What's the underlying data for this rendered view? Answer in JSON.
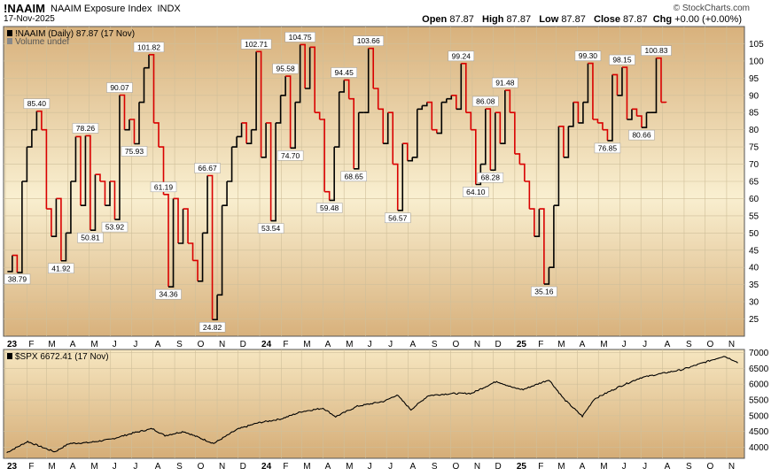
{
  "header": {
    "symbol": "!NAAIM",
    "name": "NAAIM Exposure Index",
    "exchange": "INDX",
    "date": "17-Nov-2025",
    "brand": "© StockCharts.com",
    "open_label": "Open",
    "open": "87.87",
    "high_label": "High",
    "high": "87.87",
    "low_label": "Low",
    "low": "87.87",
    "close_label": "Close",
    "close": "87.87",
    "chg_label": "Chg",
    "chg": "+0.00 (+0.00%)"
  },
  "colors": {
    "up": "#000000",
    "down": "#d90000",
    "bg_top": "#d8b17c",
    "bg_mid": "#f9efd0",
    "grid": "#cfbf9a"
  },
  "chart_data": [
    {
      "type": "line",
      "legend": "!NAAIM (Daily) 87.87 (17 Nov)",
      "sublegend": "Volume undef",
      "ylim": [
        20,
        110
      ],
      "yticks": [
        25,
        30,
        35,
        40,
        45,
        50,
        55,
        60,
        65,
        70,
        75,
        80,
        85,
        90,
        95,
        100,
        105
      ],
      "xticks": [
        "23",
        "F",
        "M",
        "A",
        "M",
        "J",
        "J",
        "A",
        "S",
        "O",
        "N",
        "D",
        "24",
        "F",
        "M",
        "A",
        "M",
        "J",
        "J",
        "A",
        "S",
        "O",
        "N",
        "D",
        "25",
        "F",
        "M",
        "A",
        "M",
        "J",
        "J",
        "A",
        "S",
        "O",
        "N"
      ],
      "x_start": "2023-01-01",
      "x_end": "2025-11-24",
      "series": [
        {
          "points": [
            [
              "2023-01-04",
              38.79
            ],
            [
              "2023-01-11",
              43.5
            ],
            [
              "2023-01-18",
              38.5
            ],
            [
              "2023-01-25",
              65.0
            ],
            [
              "2023-02-01",
              75.0
            ],
            [
              "2023-02-08",
              80.0
            ],
            [
              "2023-02-15",
              85.4
            ],
            [
              "2023-02-22",
              80.0
            ],
            [
              "2023-03-01",
              57.0
            ],
            [
              "2023-03-08",
              49.0
            ],
            [
              "2023-03-15",
              60.0
            ],
            [
              "2023-03-22",
              41.92
            ],
            [
              "2023-03-29",
              50.0
            ],
            [
              "2023-04-05",
              65.0
            ],
            [
              "2023-04-12",
              78.0
            ],
            [
              "2023-04-19",
              58.0
            ],
            [
              "2023-04-26",
              78.26
            ],
            [
              "2023-05-03",
              50.81
            ],
            [
              "2023-05-10",
              67.0
            ],
            [
              "2023-05-17",
              65.0
            ],
            [
              "2023-05-24",
              58.0
            ],
            [
              "2023-05-31",
              65.0
            ],
            [
              "2023-06-07",
              53.92
            ],
            [
              "2023-06-14",
              90.07
            ],
            [
              "2023-06-21",
              80.0
            ],
            [
              "2023-06-28",
              83.0
            ],
            [
              "2023-07-05",
              75.93
            ],
            [
              "2023-07-12",
              88.0
            ],
            [
              "2023-07-19",
              98.0
            ],
            [
              "2023-07-26",
              101.82
            ],
            [
              "2023-08-02",
              82.0
            ],
            [
              "2023-08-09",
              75.0
            ],
            [
              "2023-08-16",
              61.19
            ],
            [
              "2023-08-23",
              34.36
            ],
            [
              "2023-08-30",
              60.0
            ],
            [
              "2023-09-06",
              47.0
            ],
            [
              "2023-09-13",
              57.0
            ],
            [
              "2023-09-20",
              47.0
            ],
            [
              "2023-09-27",
              42.0
            ],
            [
              "2023-10-04",
              36.0
            ],
            [
              "2023-10-11",
              50.0
            ],
            [
              "2023-10-18",
              66.67
            ],
            [
              "2023-10-25",
              24.82
            ],
            [
              "2023-11-01",
              32.0
            ],
            [
              "2023-11-08",
              58.0
            ],
            [
              "2023-11-15",
              65.0
            ],
            [
              "2023-11-22",
              75.0
            ],
            [
              "2023-11-29",
              78.0
            ],
            [
              "2023-12-06",
              82.0
            ],
            [
              "2023-12-13",
              76.0
            ],
            [
              "2023-12-20",
              80.0
            ],
            [
              "2023-12-27",
              102.71
            ],
            [
              "2024-01-03",
              72.0
            ],
            [
              "2024-01-10",
              82.0
            ],
            [
              "2024-01-17",
              53.54
            ],
            [
              "2024-01-24",
              82.0
            ],
            [
              "2024-01-31",
              90.0
            ],
            [
              "2024-02-07",
              95.58
            ],
            [
              "2024-02-14",
              74.7
            ],
            [
              "2024-02-21",
              88.0
            ],
            [
              "2024-02-28",
              104.75
            ],
            [
              "2024-03-06",
              92.0
            ],
            [
              "2024-03-13",
              104.0
            ],
            [
              "2024-03-20",
              85.0
            ],
            [
              "2024-03-27",
              83.0
            ],
            [
              "2024-04-03",
              62.0
            ],
            [
              "2024-04-10",
              59.48
            ],
            [
              "2024-04-17",
              75.0
            ],
            [
              "2024-04-24",
              91.0
            ],
            [
              "2024-05-01",
              94.45
            ],
            [
              "2024-05-08",
              89.0
            ],
            [
              "2024-05-15",
              68.65
            ],
            [
              "2024-05-22",
              85.0
            ],
            [
              "2024-05-29",
              85.0
            ],
            [
              "2024-06-05",
              103.66
            ],
            [
              "2024-06-12",
              92.0
            ],
            [
              "2024-06-19",
              86.0
            ],
            [
              "2024-06-26",
              76.0
            ],
            [
              "2024-07-03",
              85.0
            ],
            [
              "2024-07-10",
              70.0
            ],
            [
              "2024-07-17",
              56.57
            ],
            [
              "2024-07-24",
              76.0
            ],
            [
              "2024-07-31",
              71.0
            ],
            [
              "2024-08-07",
              72.0
            ],
            [
              "2024-08-14",
              86.0
            ],
            [
              "2024-08-21",
              87.0
            ],
            [
              "2024-08-28",
              88.0
            ],
            [
              "2024-09-04",
              80.0
            ],
            [
              "2024-09-11",
              79.0
            ],
            [
              "2024-09-18",
              88.0
            ],
            [
              "2024-09-25",
              89.0
            ],
            [
              "2024-10-02",
              90.0
            ],
            [
              "2024-10-09",
              86.0
            ],
            [
              "2024-10-16",
              99.24
            ],
            [
              "2024-10-23",
              85.0
            ],
            [
              "2024-10-30",
              80.0
            ],
            [
              "2024-11-06",
              64.1
            ],
            [
              "2024-11-13",
              70.0
            ],
            [
              "2024-11-20",
              86.08
            ],
            [
              "2024-11-27",
              68.28
            ],
            [
              "2024-12-04",
              85.0
            ],
            [
              "2024-12-11",
              76.0
            ],
            [
              "2024-12-18",
              91.48
            ],
            [
              "2024-12-25",
              85.0
            ],
            [
              "2025-01-01",
              73.0
            ],
            [
              "2025-01-08",
              70.0
            ],
            [
              "2025-01-15",
              65.0
            ],
            [
              "2025-01-22",
              57.0
            ],
            [
              "2025-01-29",
              49.0
            ],
            [
              "2025-02-05",
              57.0
            ],
            [
              "2025-02-12",
              35.16
            ],
            [
              "2025-02-19",
              40.0
            ],
            [
              "2025-02-26",
              58.0
            ],
            [
              "2025-03-05",
              81.0
            ],
            [
              "2025-03-12",
              72.0
            ],
            [
              "2025-03-19",
              81.0
            ],
            [
              "2025-03-26",
              88.0
            ],
            [
              "2025-04-02",
              82.0
            ],
            [
              "2025-04-09",
              88.0
            ],
            [
              "2025-04-16",
              99.3
            ],
            [
              "2025-04-23",
              83.0
            ],
            [
              "2025-04-30",
              82.0
            ],
            [
              "2025-05-07",
              80.0
            ],
            [
              "2025-05-14",
              76.85
            ],
            [
              "2025-05-21",
              96.0
            ],
            [
              "2025-05-28",
              90.0
            ],
            [
              "2025-06-04",
              98.15
            ],
            [
              "2025-06-11",
              83.0
            ],
            [
              "2025-06-18",
              86.0
            ],
            [
              "2025-06-25",
              84.0
            ],
            [
              "2025-07-02",
              80.66
            ],
            [
              "2025-07-09",
              85.0
            ],
            [
              "2025-07-16",
              85.0
            ],
            [
              "2025-07-23",
              100.83
            ],
            [
              "2025-07-30",
              88.0
            ],
            [
              "2025-08-06",
              87.87
            ]
          ]
        }
      ],
      "annotations": [
        {
          "x": "2023-01-04",
          "value": "38.79",
          "pos": "below"
        },
        {
          "x": "2023-02-15",
          "value": "85.40",
          "pos": "above"
        },
        {
          "x": "2023-03-22",
          "value": "41.92",
          "pos": "below"
        },
        {
          "x": "2023-04-26",
          "value": "78.26",
          "pos": "above"
        },
        {
          "x": "2023-05-03",
          "value": "50.81",
          "pos": "below"
        },
        {
          "x": "2023-06-07",
          "value": "53.92",
          "pos": "below"
        },
        {
          "x": "2023-06-14",
          "value": "90.07",
          "pos": "above"
        },
        {
          "x": "2023-07-05",
          "value": "75.93",
          "pos": "below"
        },
        {
          "x": "2023-07-26",
          "value": "101.82",
          "pos": "above"
        },
        {
          "x": "2023-08-16",
          "value": "61.19",
          "pos": "above"
        },
        {
          "x": "2023-08-23",
          "value": "34.36",
          "pos": "below"
        },
        {
          "x": "2023-10-18",
          "value": "66.67",
          "pos": "above"
        },
        {
          "x": "2023-10-25",
          "value": "24.82",
          "pos": "below"
        },
        {
          "x": "2023-12-27",
          "value": "102.71",
          "pos": "above"
        },
        {
          "x": "2024-01-17",
          "value": "53.54",
          "pos": "below"
        },
        {
          "x": "2024-02-07",
          "value": "95.58",
          "pos": "above"
        },
        {
          "x": "2024-02-14",
          "value": "74.70",
          "pos": "below"
        },
        {
          "x": "2024-02-28",
          "value": "104.75",
          "pos": "above"
        },
        {
          "x": "2024-04-10",
          "value": "59.48",
          "pos": "below"
        },
        {
          "x": "2024-05-01",
          "value": "94.45",
          "pos": "above"
        },
        {
          "x": "2024-05-15",
          "value": "68.65",
          "pos": "below"
        },
        {
          "x": "2024-06-05",
          "value": "103.66",
          "pos": "above"
        },
        {
          "x": "2024-07-17",
          "value": "56.57",
          "pos": "below"
        },
        {
          "x": "2024-10-16",
          "value": "99.24",
          "pos": "above"
        },
        {
          "x": "2024-11-06",
          "value": "64.10",
          "pos": "below"
        },
        {
          "x": "2024-11-20",
          "value": "86.08",
          "pos": "above"
        },
        {
          "x": "2024-11-27",
          "value": "68.28",
          "pos": "below"
        },
        {
          "x": "2024-12-18",
          "value": "91.48",
          "pos": "above"
        },
        {
          "x": "2025-02-12",
          "value": "35.16",
          "pos": "below"
        },
        {
          "x": "2025-04-16",
          "value": "99.30",
          "pos": "above"
        },
        {
          "x": "2025-05-14",
          "value": "76.85",
          "pos": "below"
        },
        {
          "x": "2025-06-04",
          "value": "98.15",
          "pos": "above"
        },
        {
          "x": "2025-07-02",
          "value": "80.66",
          "pos": "below"
        },
        {
          "x": "2025-07-23",
          "value": "100.83",
          "pos": "above"
        }
      ]
    },
    {
      "type": "line",
      "legend": "$SPX 6672.41 (17 Nov)",
      "ylim": [
        3650,
        7100
      ],
      "yticks": [
        4000,
        4500,
        5000,
        5500,
        6000,
        6500,
        7000
      ],
      "xticks": [
        "23",
        "F",
        "M",
        "A",
        "M",
        "J",
        "J",
        "A",
        "S",
        "O",
        "N",
        "D",
        "24",
        "F",
        "M",
        "A",
        "M",
        "J",
        "J",
        "A",
        "S",
        "O",
        "N",
        "D",
        "25",
        "F",
        "M",
        "A",
        "M",
        "J",
        "J",
        "A",
        "S",
        "O",
        "N"
      ],
      "series": [
        {
          "points": [
            [
              "2023-01-03",
              3830
            ],
            [
              "2023-02-02",
              4180
            ],
            [
              "2023-03-01",
              3950
            ],
            [
              "2023-03-13",
              3855
            ],
            [
              "2023-04-03",
              4120
            ],
            [
              "2023-05-01",
              4150
            ],
            [
              "2023-06-01",
              4250
            ],
            [
              "2023-07-03",
              4450
            ],
            [
              "2023-07-31",
              4590
            ],
            [
              "2023-08-18",
              4370
            ],
            [
              "2023-09-14",
              4500
            ],
            [
              "2023-10-27",
              4120
            ],
            [
              "2023-11-30",
              4570
            ],
            [
              "2023-12-29",
              4770
            ],
            [
              "2024-02-01",
              4900
            ],
            [
              "2024-03-01",
              5130
            ],
            [
              "2024-04-01",
              5240
            ],
            [
              "2024-04-19",
              4970
            ],
            [
              "2024-05-20",
              5300
            ],
            [
              "2024-06-28",
              5460
            ],
            [
              "2024-07-16",
              5660
            ],
            [
              "2024-08-05",
              5190
            ],
            [
              "2024-08-30",
              5640
            ],
            [
              "2024-10-01",
              5700
            ],
            [
              "2024-10-31",
              5710
            ],
            [
              "2024-12-06",
              6090
            ],
            [
              "2024-12-31",
              5880
            ],
            [
              "2025-01-13",
              5830
            ],
            [
              "2025-02-19",
              6140
            ],
            [
              "2025-03-13",
              5520
            ],
            [
              "2025-04-08",
              4980
            ],
            [
              "2025-04-25",
              5530
            ],
            [
              "2025-05-30",
              5910
            ],
            [
              "2025-06-30",
              6200
            ],
            [
              "2025-07-31",
              6340
            ],
            [
              "2025-08-29",
              6460
            ],
            [
              "2025-09-30",
              6690
            ],
            [
              "2025-10-28",
              6890
            ],
            [
              "2025-11-13",
              6740
            ],
            [
              "2025-11-17",
              6672
            ]
          ]
        }
      ]
    }
  ]
}
